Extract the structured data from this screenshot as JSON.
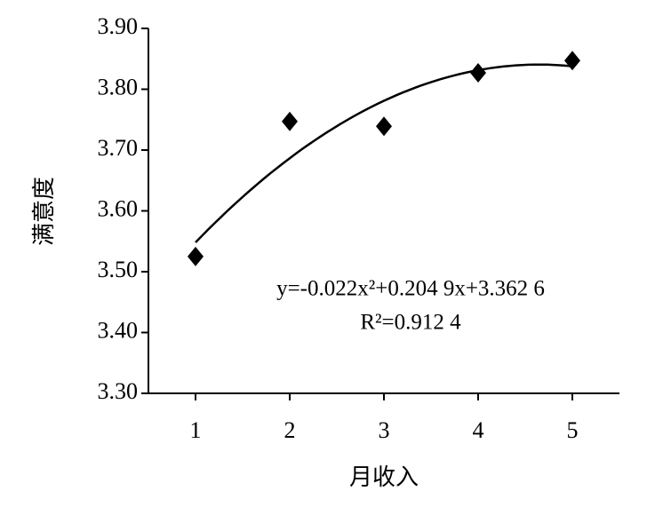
{
  "chart_data": {
    "type": "scatter",
    "x": [
      1,
      2,
      3,
      4,
      5
    ],
    "values": [
      3.525,
      3.747,
      3.739,
      3.827,
      3.847
    ],
    "color": "#000000",
    "xlabel": "月收入",
    "ylabel": "满意度",
    "xlim": [
      0.5,
      5.5
    ],
    "xticks": [
      1,
      2,
      3,
      4,
      5
    ],
    "ylim": [
      3.3,
      3.9
    ],
    "yticks": [
      {
        "value": 3.3,
        "label": "3.30"
      },
      {
        "value": 3.4,
        "label": "3.40"
      },
      {
        "value": 3.5,
        "label": "3.50"
      },
      {
        "value": 3.6,
        "label": "3.60"
      },
      {
        "value": 3.7,
        "label": "3.70"
      },
      {
        "value": 3.8,
        "label": "3.80"
      },
      {
        "value": 3.9,
        "label": "3.90"
      }
    ],
    "trendline": "quadratic",
    "annotations": [
      "y=-0.022x²+0.204 9x+3.362 6",
      "R²=0.912 4"
    ]
  }
}
